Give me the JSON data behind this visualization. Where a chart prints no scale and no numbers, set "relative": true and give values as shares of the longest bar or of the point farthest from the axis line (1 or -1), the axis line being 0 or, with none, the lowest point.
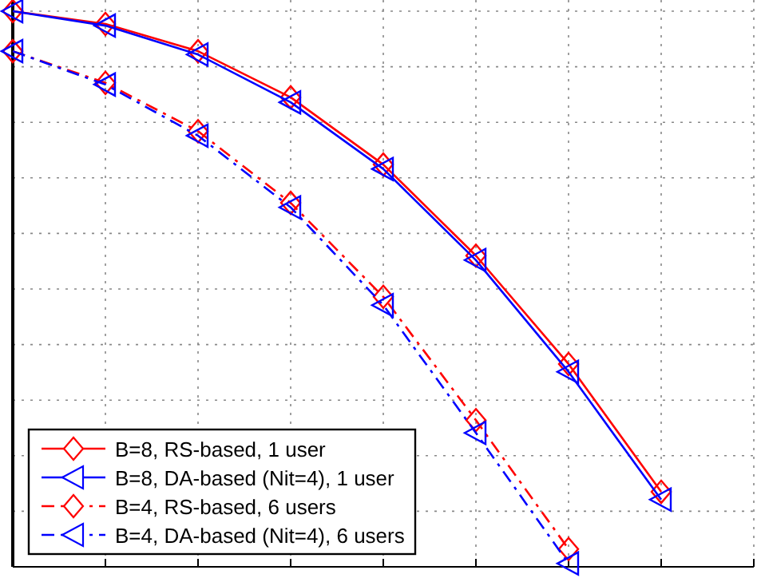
{
  "chart_data": {
    "type": "line",
    "relative": true,
    "grid": true,
    "legend": "bottom left",
    "categories": [
      null,
      null,
      null,
      null,
      null,
      null,
      null,
      null,
      null
    ],
    "series": [
      {
        "name": "B=8, RS-based, 1 user",
        "color": "#ff0000",
        "marker": "diamond",
        "line_style": "solid",
        "values": [
          1,
          0.977,
          0.928,
          0.845,
          0.724,
          0.56,
          0.365,
          0.135,
          null
        ]
      },
      {
        "name": "B=8, DA-based (Nit=4), 1 user",
        "color": "#0000ff",
        "marker": "triangle",
        "line_style": "solid",
        "values": [
          1,
          0.974,
          0.922,
          0.836,
          0.716,
          0.552,
          0.351,
          0.121,
          null
        ]
      },
      {
        "name": "B=4, RS-based, 6 users",
        "color": "#ff0000",
        "marker": "diamond",
        "line_style": "dashdot",
        "values": [
          0.928,
          0.871,
          0.784,
          0.655,
          0.486,
          0.264,
          0.032,
          null,
          null
        ]
      },
      {
        "name": "B=4, DA-based (Nit=4), 6 users",
        "color": "#0000ff",
        "marker": "triangle",
        "line_style": "dashdot",
        "values": [
          0.928,
          0.868,
          0.776,
          0.647,
          0.471,
          0.241,
          0.006,
          null,
          null
        ]
      }
    ]
  }
}
